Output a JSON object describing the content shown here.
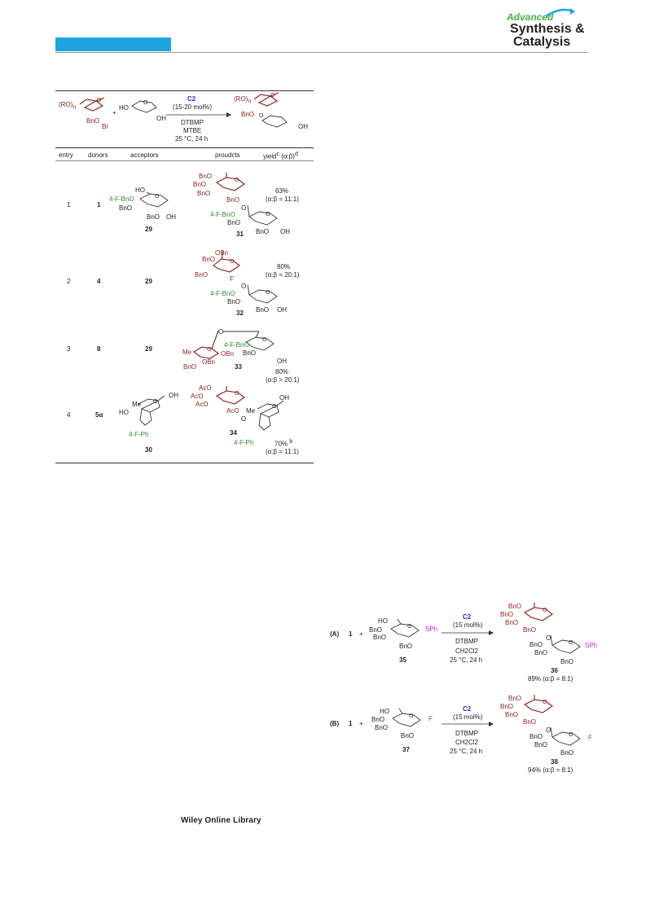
{
  "header": {
    "logo_line1": "Advanced",
    "logo_line2": "Synthesis &",
    "logo_line3": "Catalysis"
  },
  "footer": {
    "library": "Wiley Online Library"
  },
  "table": {
    "scheme": {
      "donor_ro": "(RO)",
      "donor_n": "n",
      "donor_bno": "BnO",
      "donor_br": "Br",
      "plus": "+",
      "acceptor_ho": "HO",
      "acceptor_oh": "OH",
      "catalyst": "C2",
      "loading": "(15-20 mol%)",
      "base": "DTBMP",
      "solvent": "MTBE",
      "conditions": "25 °C, 24 h",
      "product_ro": "(RO)",
      "product_n": "n",
      "product_bno": "BnO",
      "product_oh": "OH"
    },
    "headers": {
      "entry": "entry",
      "donors": "donors",
      "acceptors": "acceptors",
      "products": "proudcts",
      "yield": "yield",
      "yield_sup": "c",
      "ratio": "(α:β)",
      "ratio_sup": "d"
    },
    "rows": [
      {
        "entry": "1",
        "donor": "1",
        "acceptor": "29",
        "product": "31",
        "yield": "63%",
        "ratio": "(α:β = 11:1)"
      },
      {
        "entry": "2",
        "donor": "4",
        "acceptor": "29",
        "product": "32",
        "yield": "80%",
        "ratio": "(α:β = 20:1)"
      },
      {
        "entry": "3",
        "donor": "8",
        "acceptor": "29",
        "product": "33",
        "yield": "80%",
        "ratio": "(α:β > 20:1)"
      },
      {
        "entry": "4",
        "donor": "5α",
        "acceptor": "30",
        "product": "34",
        "yield": "70%",
        "yield_sup": "b",
        "ratio": "(α:β = 11:1)"
      }
    ],
    "labels": {
      "bno": "BnO",
      "ho": "HO",
      "oh": "OH",
      "fbno": "4-F-BnO",
      "fph": "4-F-Ph",
      "obn": "OBn",
      "ome": "Me",
      "aco": "AcO",
      "f": "F",
      "o": "O"
    }
  },
  "scheme2": {
    "a": {
      "tag": "(A)",
      "donor": "1",
      "plus": "+",
      "acceptor": "35",
      "product": "36",
      "catalyst": "C2",
      "loading": "(15 mol%)",
      "base": "DTBMP",
      "solvent": "CH2Cl2",
      "conditions": "25 °C, 24 h",
      "leaving": "SPh",
      "result": "89% (α:β = 8:1)"
    },
    "b": {
      "tag": "(B)",
      "donor": "1",
      "plus": "+",
      "acceptor": "37",
      "product": "38",
      "catalyst": "C2",
      "loading": "(15 mol%)",
      "base": "DTBMP",
      "solvent": "CH2Cl2",
      "conditions": "25 °C, 24 h",
      "leaving": "F",
      "result": "94% (α:β = 8:1)"
    }
  }
}
